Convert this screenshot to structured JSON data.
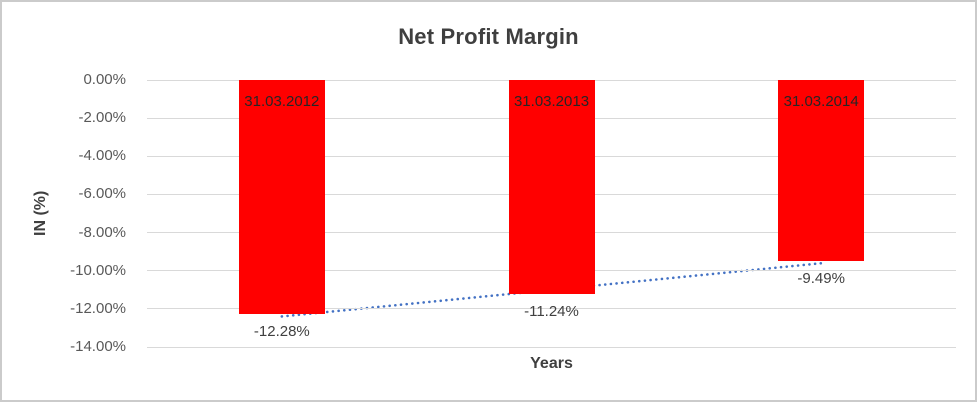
{
  "chart_data": {
    "type": "bar",
    "title": "Net Profit Margin",
    "xlabel": "Years",
    "ylabel": "IN (%)",
    "categories": [
      "31.03.2012",
      "31.03.2013",
      "31.03.2014"
    ],
    "values": [
      -12.28,
      -11.24,
      -9.49
    ],
    "value_labels": [
      "-12.28%",
      "-11.24%",
      "-9.49%"
    ],
    "ylim": [
      -14,
      0
    ],
    "yticks": [
      "0.00%",
      "-2.00%",
      "-4.00%",
      "-6.00%",
      "-8.00%",
      "-10.00%",
      "-12.00%",
      "-14.00%"
    ],
    "grid": true,
    "legend": false,
    "bar_color": "#ff0000",
    "category_label_position": "inside-top",
    "value_label_position": "outside-end",
    "trendline": {
      "type": "linear",
      "style": "dotted",
      "color": "#4472c4"
    }
  }
}
